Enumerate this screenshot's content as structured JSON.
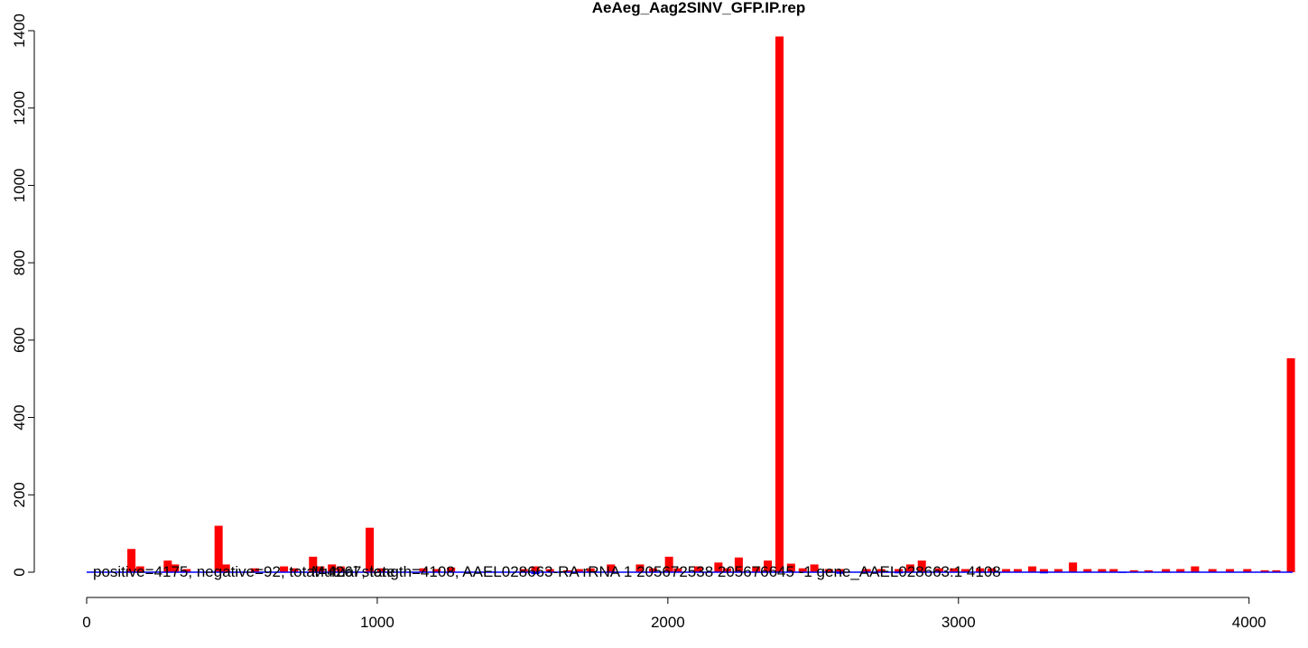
{
  "chart_data": {
    "type": "bar",
    "title": "AeAeg_Aag2SINV_GFP.IP.rep",
    "xlabel": "",
    "ylabel": "",
    "xlim": [
      0,
      4150
    ],
    "ylim": [
      0,
      1400
    ],
    "x_ticks": [
      0,
      1000,
      2000,
      3000,
      4000
    ],
    "y_ticks": [
      0,
      200,
      400,
      600,
      800,
      1000,
      1200,
      1400
    ],
    "x_tick_labels": [
      "0",
      "1000",
      "2000",
      "3000",
      "4000"
    ],
    "y_tick_labels": [
      "0",
      "200",
      "400",
      "600",
      "800",
      "1000",
      "1200",
      "1400"
    ],
    "bin_width": 28,
    "annotation": "positive=4175, negative=92, total=4267, length=4108, AAEL028663-RA rRNA 1 205672538 205676645 -1 gene_AAEL028663:1 4108",
    "annotation2": "Mutual state",
    "colors": {
      "positive": "#ff0000",
      "negative": "#0000ff",
      "axis": "#000000"
    },
    "series": [
      {
        "name": "positive",
        "x": [
          140,
          170,
          265,
          290,
          330,
          440,
          465,
          565,
          665,
          700,
          765,
          790,
          830,
          860,
          960,
          1000,
          1145,
          1190,
          1240,
          1490,
          1530,
          1580,
          1640,
          1680,
          1720,
          1790,
          1890,
          1935,
          1990,
          2020,
          2090,
          2160,
          2190,
          2230,
          2290,
          2330,
          2370,
          2410,
          2450,
          2490,
          2540,
          2580,
          2670,
          2720,
          2780,
          2820,
          2860,
          2920,
          2970,
          3010,
          3060,
          3100,
          3150,
          3190,
          3240,
          3280,
          3330,
          3380,
          3430,
          3480,
          3520,
          3590,
          3640,
          3700,
          3750,
          3800,
          3860,
          3920,
          3980,
          4040,
          4080,
          4130
        ],
        "values": [
          60,
          15,
          30,
          20,
          8,
          120,
          20,
          10,
          15,
          10,
          40,
          15,
          20,
          15,
          115,
          10,
          10,
          8,
          12,
          8,
          15,
          8,
          5,
          8,
          10,
          20,
          20,
          10,
          40,
          10,
          15,
          25,
          10,
          38,
          15,
          30,
          1385,
          22,
          10,
          20,
          8,
          8,
          8,
          8,
          8,
          20,
          30,
          10,
          10,
          8,
          10,
          10,
          8,
          8,
          15,
          8,
          8,
          25,
          8,
          8,
          8,
          5,
          5,
          8,
          8,
          15,
          8,
          8,
          8,
          5,
          5,
          553
        ]
      },
      {
        "name": "negative",
        "x": [
          1530,
          2580,
          2780,
          3280,
          3550
        ],
        "values": [
          5,
          4,
          3,
          3,
          2
        ]
      }
    ]
  }
}
